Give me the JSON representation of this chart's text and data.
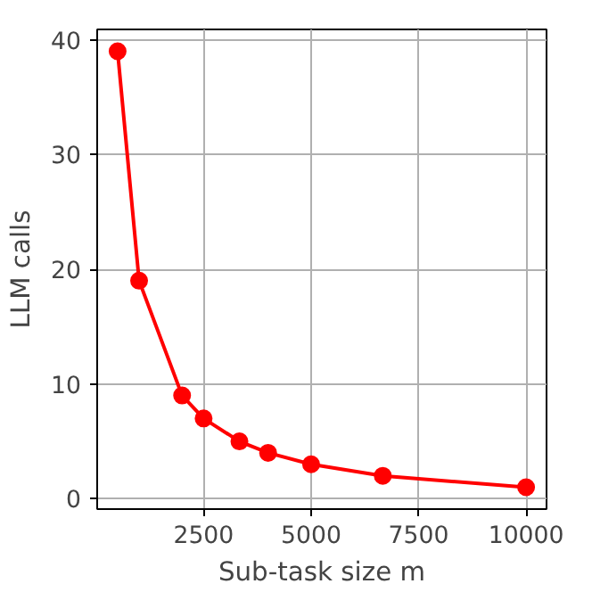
{
  "chart_data": {
    "type": "line",
    "xlabel": "Sub-task size m",
    "ylabel": "LLM calls",
    "x": [
      500,
      1000,
      2000,
      2500,
      3333,
      4000,
      5000,
      6667,
      10000
    ],
    "series": [
      {
        "color": "#ff0000",
        "values": [
          39,
          19,
          9,
          7,
          5,
          4,
          3,
          2,
          1
        ]
      }
    ],
    "xlim": [
      25,
      10475
    ],
    "ylim": [
      -0.9,
      40.9
    ],
    "xticks": [
      2500,
      5000,
      7500,
      10000
    ],
    "yticks": [
      0,
      10,
      20,
      30,
      40
    ],
    "grid": true,
    "marker": "circle",
    "line_style": "solid"
  }
}
